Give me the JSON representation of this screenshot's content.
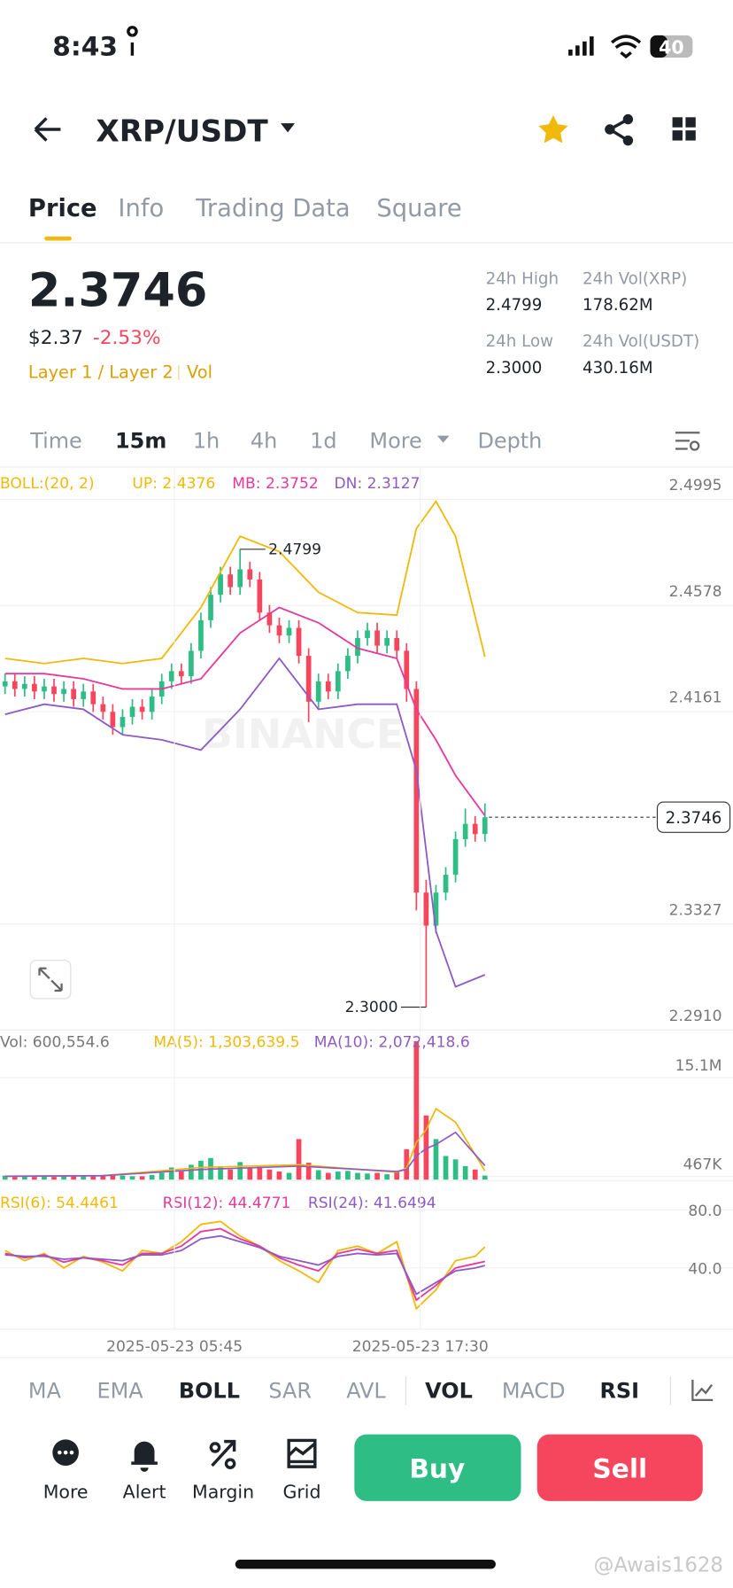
{
  "status_bar": {
    "time": "8:43",
    "battery": "40"
  },
  "header": {
    "pair": "XRP/USDT"
  },
  "tabs": [
    "Price",
    "Info",
    "Trading Data",
    "Square"
  ],
  "ticker": {
    "price": "2.3746",
    "fiat": "$2.37",
    "change": "-2.53%",
    "tags": [
      "Layer 1 / Layer 2",
      "Vol"
    ],
    "stats": [
      {
        "label": "24h High",
        "value": "2.4799"
      },
      {
        "label": "24h Vol(XRP)",
        "value": "178.62M"
      },
      {
        "label": "24h Low",
        "value": "2.3000"
      },
      {
        "label": "24h Vol(USDT)",
        "value": "430.16M"
      }
    ]
  },
  "intervals": [
    "Time",
    "15m",
    "1h",
    "4h",
    "1d",
    "More",
    "Depth"
  ],
  "watermark_brand": "BINANCE",
  "chart_data": [
    {
      "type": "candlestick",
      "indicator": "BOLL:(20, 2)",
      "up_color": "#2ebd85",
      "down_color": "#f6465d",
      "open": [
        2.426,
        2.428,
        2.425,
        2.427,
        2.424,
        2.426,
        2.423,
        2.425,
        2.421,
        2.424,
        2.419,
        2.416,
        2.41,
        2.414,
        2.418,
        2.416,
        2.422,
        2.428,
        2.432,
        2.43,
        2.44,
        2.452,
        2.462,
        2.47,
        2.465,
        2.472,
        2.468,
        2.455,
        2.45,
        2.446,
        2.449,
        2.438,
        2.42,
        2.428,
        2.424,
        2.432,
        2.438,
        2.445,
        2.448,
        2.442,
        2.445,
        2.44,
        2.425,
        2.345,
        2.332,
        2.345,
        2.352,
        2.366,
        2.372,
        2.368
      ],
      "high": [
        2.431,
        2.431,
        2.43,
        2.43,
        2.429,
        2.429,
        2.428,
        2.428,
        2.427,
        2.427,
        2.422,
        2.419,
        2.417,
        2.421,
        2.421,
        2.425,
        2.431,
        2.435,
        2.435,
        2.443,
        2.455,
        2.465,
        2.473,
        2.473,
        2.4799,
        2.475,
        2.471,
        2.458,
        2.453,
        2.452,
        2.452,
        2.441,
        2.431,
        2.431,
        2.435,
        2.441,
        2.448,
        2.451,
        2.451,
        2.448,
        2.448,
        2.443,
        2.428,
        2.35,
        2.348,
        2.355,
        2.369,
        2.378,
        2.375,
        2.38
      ],
      "low": [
        2.423,
        2.422,
        2.422,
        2.421,
        2.421,
        2.42,
        2.42,
        2.418,
        2.418,
        2.416,
        2.413,
        2.407,
        2.407,
        2.411,
        2.413,
        2.413,
        2.419,
        2.425,
        2.427,
        2.427,
        2.437,
        2.449,
        2.459,
        2.462,
        2.462,
        2.465,
        2.452,
        2.447,
        2.443,
        2.443,
        2.435,
        2.412,
        2.417,
        2.421,
        2.421,
        2.429,
        2.435,
        2.442,
        2.439,
        2.439,
        2.437,
        2.42,
        2.338,
        2.3,
        2.329,
        2.342,
        2.349,
        2.363,
        2.365,
        2.365
      ],
      "close": [
        2.428,
        2.425,
        2.427,
        2.424,
        2.426,
        2.423,
        2.425,
        2.421,
        2.424,
        2.419,
        2.416,
        2.41,
        2.414,
        2.418,
        2.416,
        2.422,
        2.428,
        2.432,
        2.43,
        2.44,
        2.452,
        2.462,
        2.47,
        2.465,
        2.472,
        2.468,
        2.455,
        2.45,
        2.446,
        2.449,
        2.438,
        2.42,
        2.428,
        2.424,
        2.432,
        2.438,
        2.445,
        2.448,
        2.442,
        2.445,
        2.44,
        2.425,
        2.345,
        2.332,
        2.345,
        2.352,
        2.366,
        2.372,
        2.368,
        2.3746
      ],
      "series": [
        {
          "name": "UP: 2.4376",
          "color": "#f0b90b",
          "x": [
            0,
            4,
            8,
            12,
            16,
            20,
            24,
            28,
            32,
            36,
            40,
            42,
            44,
            46,
            49
          ],
          "values": [
            2.437,
            2.435,
            2.437,
            2.435,
            2.437,
            2.457,
            2.485,
            2.479,
            2.463,
            2.455,
            2.454,
            2.488,
            2.4987,
            2.485,
            2.4376
          ]
        },
        {
          "name": "MB: 2.3752",
          "color": "#e6399b",
          "x": [
            0,
            4,
            8,
            12,
            16,
            20,
            24,
            28,
            32,
            36,
            40,
            42,
            44,
            46,
            49
          ],
          "values": [
            2.431,
            2.431,
            2.429,
            2.425,
            2.425,
            2.429,
            2.447,
            2.457,
            2.451,
            2.441,
            2.437,
            2.417,
            2.405,
            2.391,
            2.3752
          ]
        },
        {
          "name": "DN: 2.3127",
          "color": "#8e5bc4",
          "x": [
            0,
            4,
            8,
            12,
            16,
            20,
            24,
            28,
            32,
            36,
            40,
            42,
            44,
            46,
            49
          ],
          "values": [
            2.415,
            2.419,
            2.417,
            2.407,
            2.405,
            2.401,
            2.417,
            2.437,
            2.417,
            2.419,
            2.419,
            2.393,
            2.3298,
            2.308,
            2.3127
          ]
        }
      ],
      "annotations": [
        {
          "index": 24,
          "value": 2.4799,
          "label": "2.4799"
        },
        {
          "index": 43,
          "value": 2.3,
          "label": "2.3000"
        }
      ],
      "last_price": {
        "value": 2.3746,
        "label": "2.3746"
      },
      "ylim": [
        2.291,
        2.5118
      ],
      "yticks": [
        2.4995,
        2.4578,
        2.4161,
        2.3327,
        {
          "value": 2.291,
          "label": "2.2910"
        }
      ]
    },
    {
      "type": "bar",
      "series": [
        {
          "name": "Vol: 600,554.6",
          "values": [
            600000,
            400000,
            500000,
            400000,
            500000,
            400000,
            500000,
            600000,
            500000,
            600000,
            700000,
            800000,
            600000,
            500000,
            500000,
            700000,
            1000000,
            1800000,
            1200000,
            2200000,
            2800000,
            3200000,
            2000000,
            1500000,
            2600000,
            1800000,
            1900000,
            1500000,
            1200000,
            1000000,
            6000000,
            2500000,
            1400000,
            1000000,
            1200000,
            1300000,
            1000000,
            900000,
            1000000,
            800000,
            1200000,
            4500000,
            20500000,
            9500000,
            6000000,
            3500000,
            3000000,
            2000000,
            1500000,
            600554.6
          ]
        },
        {
          "name": "MA(5): 1,303,639.5",
          "color": "#f0b90b",
          "x": [
            0,
            10,
            20,
            30,
            40,
            41,
            42,
            43,
            44,
            46,
            49
          ],
          "values": [
            500000,
            600000,
            1800000,
            2200000,
            1100000,
            1700000,
            5500000,
            7400000,
            10500000,
            8500000,
            1303639.5
          ]
        },
        {
          "name": "MA(10): 2,072,418.6",
          "color": "#8e5bc4",
          "x": [
            0,
            10,
            20,
            30,
            40,
            41,
            42,
            43,
            44,
            46,
            49
          ],
          "values": [
            500000,
            580000,
            1500000,
            2000000,
            1200000,
            1500000,
            3500000,
            4600000,
            5200000,
            7000000,
            2072418.6
          ]
        }
      ],
      "ylim": [
        0,
        22000000
      ],
      "yticks": [
        {
          "value": 15100000,
          "label": "15.1M"
        },
        {
          "value": 467000,
          "label": "467K"
        }
      ]
    },
    {
      "type": "line",
      "x": [
        0,
        2,
        4,
        6,
        8,
        10,
        12,
        14,
        16,
        18,
        20,
        22,
        24,
        26,
        28,
        30,
        32,
        34,
        36,
        38,
        40,
        42,
        44,
        46,
        48,
        49
      ],
      "series": [
        {
          "name": "RSI(6): 54.4461",
          "color": "#f0b90b",
          "values": [
            52,
            45,
            50,
            40,
            48,
            44,
            38,
            52,
            50,
            58,
            70,
            72,
            62,
            55,
            45,
            38,
            30,
            52,
            55,
            50,
            58,
            12,
            25,
            45,
            48,
            54.4461
          ]
        },
        {
          "name": "RSI(12): 44.4771",
          "color": "#e6399b",
          "values": [
            50,
            47,
            49,
            44,
            47,
            45,
            42,
            50,
            50,
            55,
            65,
            67,
            60,
            55,
            47,
            42,
            38,
            50,
            53,
            50,
            52,
            18,
            28,
            40,
            43,
            44.4771
          ]
        },
        {
          "name": "RSI(24): 41.6494",
          "color": "#8e5bc4",
          "values": [
            49,
            48,
            48,
            46,
            47,
            46,
            45,
            49,
            49,
            52,
            60,
            62,
            58,
            54,
            48,
            45,
            42,
            48,
            50,
            49,
            50,
            22,
            30,
            38,
            40,
            41.6494
          ]
        }
      ],
      "ylim": [
        0,
        100
      ],
      "yticks": [
        {
          "value": 80,
          "label": "80.0"
        },
        {
          "value": 40,
          "label": "40.0"
        }
      ],
      "xticks": [
        {
          "value": 17.3,
          "label": "2025-05-23 05:45"
        },
        {
          "value": 42.4,
          "label": "2025-05-23 17:30"
        }
      ]
    }
  ],
  "indicator_tabs": [
    "MA",
    "EMA",
    "BOLL",
    "SAR",
    "AVL",
    "VOL",
    "MACD",
    "RSI"
  ],
  "actions": [
    "More",
    "Alert",
    "Margin",
    "Grid"
  ],
  "buttons": {
    "buy": "Buy",
    "sell": "Sell"
  },
  "watermark": "@Awais1628"
}
